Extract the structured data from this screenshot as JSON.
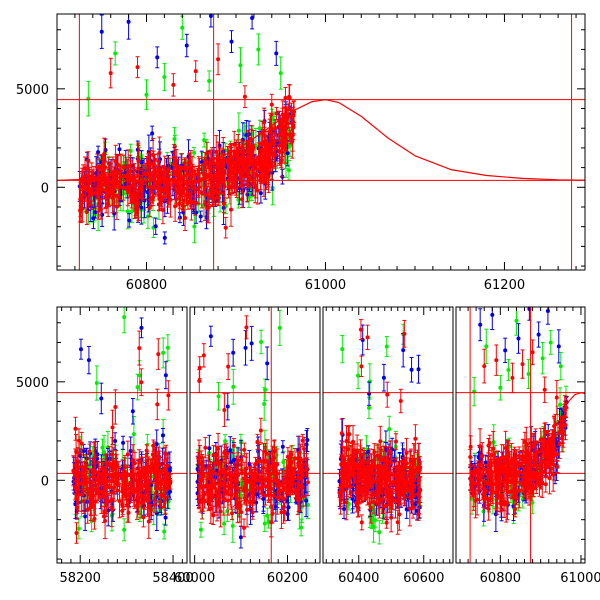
{
  "chart_data": [
    {
      "type": "scatter",
      "title": "",
      "xlabel": "",
      "ylabel": "",
      "xlim": [
        60700,
        61290
      ],
      "ylim": [
        -4200,
        8800
      ],
      "x_ticks": [
        60800,
        61000,
        61200
      ],
      "y_ticks": [
        0,
        5000
      ],
      "x_tick_labels": [
        "60800",
        "61000",
        "61200"
      ],
      "y_tick_labels": [
        "0",
        "5000"
      ],
      "x_minor_step": 20,
      "y_minor_step": 1000,
      "grid": false,
      "legend": "none",
      "error_bars": true,
      "colors": {
        "g": "#00ee00",
        "r": "#ff0000",
        "b": "#0000ee",
        "model": "#ff0000",
        "guides": "#ff0000"
      },
      "reference_lines": {
        "horizontal": [
          4450,
          350
        ],
        "vertical": [
          60725,
          60875,
          61275
        ]
      },
      "model_curve": {
        "description_in_data": "rise-and-decline light curve",
        "x": [
          60700,
          60760,
          60820,
          60860,
          60900,
          60930,
          60960,
          60985,
          61000,
          61015,
          61040,
          61070,
          61100,
          61140,
          61180,
          61220,
          61260,
          61290
        ],
        "y": [
          350,
          450,
          700,
          1100,
          1900,
          2800,
          3800,
          4350,
          4450,
          4300,
          3600,
          2500,
          1600,
          900,
          600,
          450,
          380,
          360
        ]
      },
      "series": [
        {
          "band": "g",
          "segments": [
            [
              60725,
              60965
            ]
          ],
          "trend": [
            [
              60725,
              0
            ],
            [
              60860,
              200
            ],
            [
              60930,
              1400
            ],
            [
              60965,
              3200
            ]
          ],
          "spread": 900,
          "spikes": [
            [
              60735,
              4500
            ],
            [
              60765,
              6800
            ],
            [
              60800,
              4700
            ],
            [
              60820,
              5600
            ],
            [
              60840,
              8100
            ],
            [
              60870,
              5400
            ],
            [
              60905,
              6200
            ],
            [
              60925,
              7000
            ],
            [
              60950,
              5800
            ]
          ]
        },
        {
          "band": "r",
          "segments": [
            [
              60725,
              60965
            ]
          ],
          "trend": [
            [
              60725,
              0
            ],
            [
              60860,
              250
            ],
            [
              60930,
              1500
            ],
            [
              60965,
              3400
            ]
          ],
          "spread": 700,
          "spikes": [
            [
              60760,
              5800
            ],
            [
              60790,
              6100
            ],
            [
              60830,
              5200
            ],
            [
              60855,
              5900
            ],
            [
              60880,
              6500
            ],
            [
              60910,
              4600
            ],
            [
              60940,
              4200
            ]
          ]
        },
        {
          "band": "b",
          "segments": [
            [
              60725,
              60965
            ]
          ],
          "trend": [
            [
              60725,
              0
            ],
            [
              60860,
              200
            ],
            [
              60930,
              1400
            ],
            [
              60965,
              3300
            ]
          ],
          "spread": 800,
          "spikes": [
            [
              60750,
              7900
            ],
            [
              60780,
              8400
            ],
            [
              60812,
              6600
            ],
            [
              60845,
              7200
            ],
            [
              60872,
              8700
            ],
            [
              60895,
              7400
            ],
            [
              60918,
              8600
            ],
            [
              60945,
              6800
            ]
          ]
        }
      ]
    },
    {
      "type": "scatter",
      "title": "",
      "xlabel": "",
      "ylabel": "",
      "ylim": [
        -4200,
        8800
      ],
      "y_ticks": [
        0,
        5000
      ],
      "y_tick_labels": [
        "0",
        "5000"
      ],
      "y_minor_step": 1000,
      "grid": false,
      "legend": "none",
      "error_bars": true,
      "broken_x_axis": true,
      "reference_lines": {
        "horizontal": [
          4450,
          350
        ]
      },
      "panels": [
        {
          "xlim": [
            58150,
            58430
          ],
          "x_ticks": [
            58200,
            58400
          ],
          "x_tick_labels": [
            "58200",
            "58400"
          ],
          "x_minor_step": 20,
          "vertical_lines": [],
          "data_range": [
            58185,
            58395
          ]
        },
        {
          "xlim": [
            59990,
            60270
          ],
          "x_ticks": [
            60000,
            60200
          ],
          "x_tick_labels": [
            "60000",
            "60200"
          ],
          "x_minor_step": 20,
          "vertical_lines": [
            60165
          ],
          "data_range": [
            60005,
            60245
          ]
        },
        {
          "xlim": [
            60290,
            60690
          ],
          "x_ticks": [
            60400,
            60600
          ],
          "x_tick_labels": [
            "60400",
            "60600"
          ],
          "x_minor_step": 20,
          "vertical_lines": [],
          "data_range": [
            60340,
            60590
          ]
        },
        {
          "xlim": [
            60690,
            61010
          ],
          "x_ticks": [
            60800,
            61000
          ],
          "x_tick_labels": [
            "60800",
            "61000"
          ],
          "x_minor_step": 20,
          "vertical_lines": [
            60725,
            60875
          ],
          "data_range": [
            60725,
            60965
          ]
        }
      ],
      "model_curve_tail": {
        "x": [
          60960,
          60985,
          61000,
          61010
        ],
        "y": [
          3800,
          4350,
          4450,
          4400
        ]
      }
    }
  ]
}
